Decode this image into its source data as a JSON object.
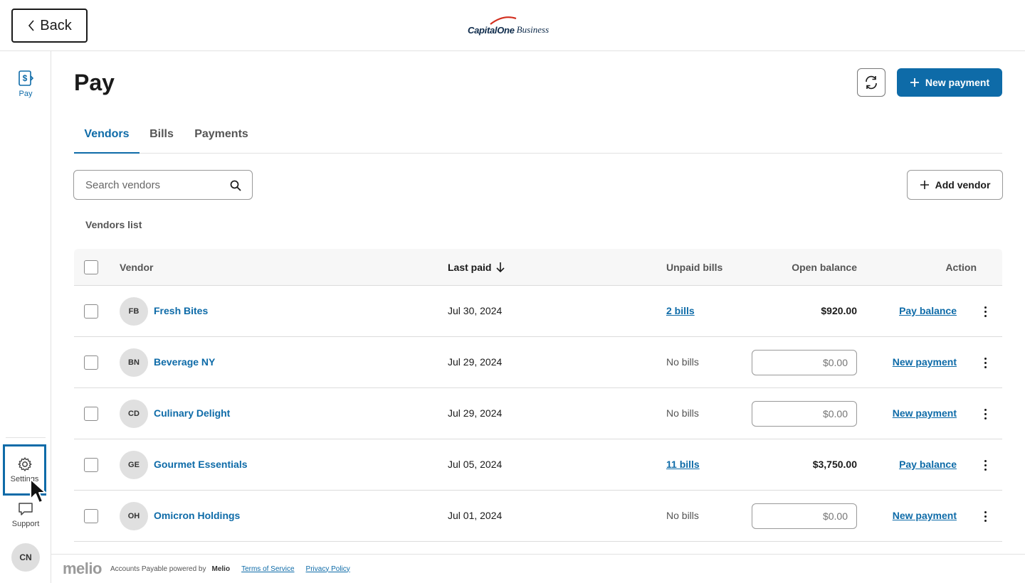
{
  "header": {
    "back_label": "Back",
    "brand_capital": "CapitalOne",
    "brand_business": "Business"
  },
  "sidebar": {
    "pay_label": "Pay",
    "settings_label": "Settings",
    "support_label": "Support",
    "user_initials": "CN"
  },
  "page": {
    "title": "Pay",
    "new_payment_label": "New payment"
  },
  "tabs": [
    {
      "label": "Vendors",
      "active": true
    },
    {
      "label": "Bills",
      "active": false
    },
    {
      "label": "Payments",
      "active": false
    }
  ],
  "search": {
    "placeholder": "Search vendors"
  },
  "add_vendor_label": "Add vendor",
  "list_caption": "Vendors list",
  "table": {
    "columns": {
      "vendor": "Vendor",
      "last_paid": "Last paid",
      "unpaid_bills": "Unpaid bills",
      "open_balance": "Open balance",
      "action": "Action"
    },
    "rows": [
      {
        "initials": "FB",
        "name": "Fresh Bites",
        "last_paid": "Jul 30, 2024",
        "unpaid": "2 bills",
        "balance": "$920.00",
        "action": "Pay balance"
      },
      {
        "initials": "BN",
        "name": "Beverage NY",
        "last_paid": "Jul 29, 2024",
        "unpaid": "No bills",
        "amount_placeholder": "$0.00",
        "action": "New payment"
      },
      {
        "initials": "CD",
        "name": "Culinary Delight",
        "last_paid": "Jul 29, 2024",
        "unpaid": "No bills",
        "amount_placeholder": "$0.00",
        "action": "New payment"
      },
      {
        "initials": "GE",
        "name": "Gourmet Essentials",
        "last_paid": "Jul 05, 2024",
        "unpaid": "11 bills",
        "balance": "$3,750.00",
        "action": "Pay balance"
      },
      {
        "initials": "OH",
        "name": "Omicron Holdings",
        "last_paid": "Jul 01, 2024",
        "unpaid": "No bills",
        "amount_placeholder": "$0.00",
        "action": "New payment"
      }
    ]
  },
  "footer": {
    "logo": "melio",
    "powered_prefix": "Accounts Payable powered by",
    "powered_brand": "Melio",
    "terms": "Terms of Service",
    "privacy": "Privacy Policy"
  },
  "colors": {
    "accent": "#0e6ba8",
    "border": "#dcdcdc",
    "header_bg": "#f7f7f7"
  }
}
